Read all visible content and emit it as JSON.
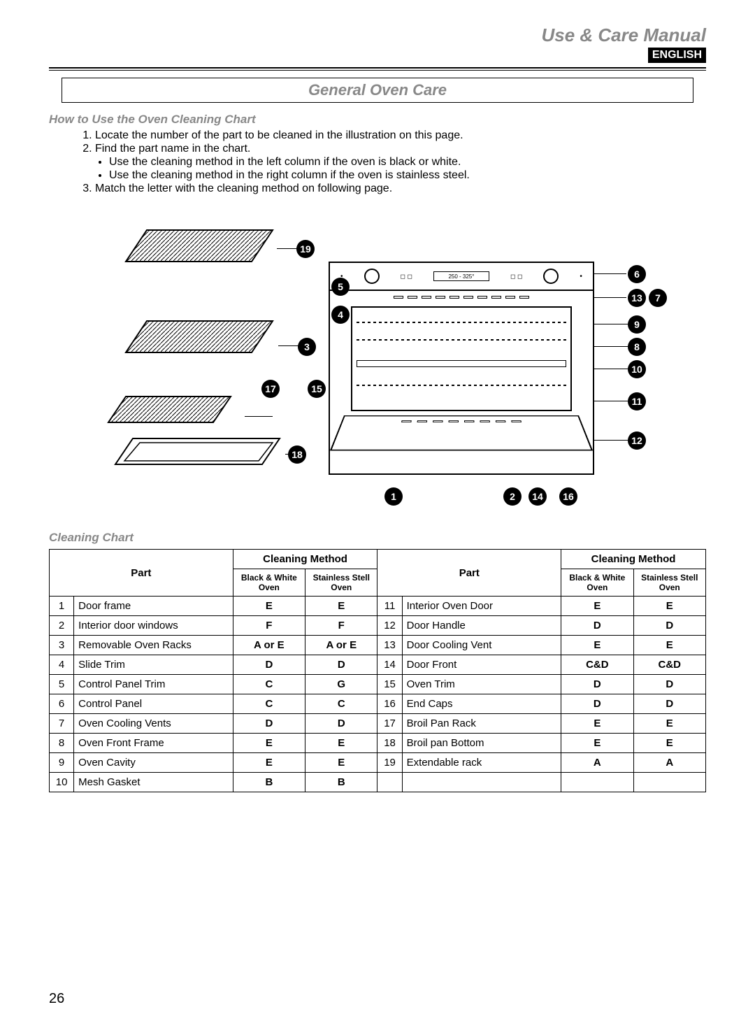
{
  "header": {
    "doc_title": "Use & Care Manual",
    "language_badge": "ENGLISH"
  },
  "section": {
    "title": "General Oven Care",
    "subtitle": "How to Use the Oven Cleaning Chart"
  },
  "instructions": {
    "items": [
      "Locate the number of the part to be cleaned in the illustration on this page.",
      "Find the part name in the chart."
    ],
    "item2_bullets": [
      "Use the cleaning method in the left column if the oven is black or white.",
      "Use the cleaning method in the right column if the oven is stainless steel."
    ],
    "item3": "Match the letter with the cleaning method on following page."
  },
  "diagram": {
    "display_text": "250 - 325°",
    "callouts": [
      "1",
      "2",
      "3",
      "4",
      "5",
      "6",
      "7",
      "8",
      "9",
      "10",
      "11",
      "12",
      "13",
      "14",
      "15",
      "16",
      "17",
      "18",
      "19"
    ]
  },
  "chart": {
    "heading": "Cleaning Chart",
    "headers": {
      "part": "Part",
      "method": "Cleaning Method",
      "bw": "Black & White Oven",
      "ss": "Stainless Stell Oven"
    },
    "left": [
      {
        "n": "1",
        "name": "Door frame",
        "bw": "E",
        "ss": "E"
      },
      {
        "n": "2",
        "name": "Interior door windows",
        "bw": "F",
        "ss": "F"
      },
      {
        "n": "3",
        "name": "Removable Oven Racks",
        "bw": "A or E",
        "ss": "A or E"
      },
      {
        "n": "4",
        "name": "Slide Trim",
        "bw": "D",
        "ss": "D"
      },
      {
        "n": "5",
        "name": "Control Panel Trim",
        "bw": "C",
        "ss": "G"
      },
      {
        "n": "6",
        "name": "Control Panel",
        "bw": "C",
        "ss": "C"
      },
      {
        "n": "7",
        "name": "Oven Cooling Vents",
        "bw": "D",
        "ss": "D"
      },
      {
        "n": "8",
        "name": "Oven Front Frame",
        "bw": "E",
        "ss": "E"
      },
      {
        "n": "9",
        "name": "Oven Cavity",
        "bw": "E",
        "ss": "E"
      },
      {
        "n": "10",
        "name": "Mesh Gasket",
        "bw": "B",
        "ss": "B"
      }
    ],
    "right": [
      {
        "n": "11",
        "name": "Interior Oven Door",
        "bw": "E",
        "ss": "E"
      },
      {
        "n": "12",
        "name": "Door Handle",
        "bw": "D",
        "ss": "D"
      },
      {
        "n": "13",
        "name": "Door Cooling Vent",
        "bw": "E",
        "ss": "E"
      },
      {
        "n": "14",
        "name": "Door Front",
        "bw": "C&D",
        "ss": "C&D"
      },
      {
        "n": "15",
        "name": "Oven Trim",
        "bw": "D",
        "ss": "D"
      },
      {
        "n": "16",
        "name": "End Caps",
        "bw": "D",
        "ss": "D"
      },
      {
        "n": "17",
        "name": "Broil Pan Rack",
        "bw": "E",
        "ss": "E"
      },
      {
        "n": "18",
        "name": "Broil pan Bottom",
        "bw": "E",
        "ss": "E"
      },
      {
        "n": "19",
        "name": "Extendable rack",
        "bw": "A",
        "ss": "A"
      },
      {
        "n": "",
        "name": "",
        "bw": "",
        "ss": ""
      }
    ]
  },
  "page_number": "26",
  "colors": {
    "subtitle_gray": "#888888",
    "text": "#000000",
    "badge_bg": "#000000",
    "badge_fg": "#ffffff"
  }
}
